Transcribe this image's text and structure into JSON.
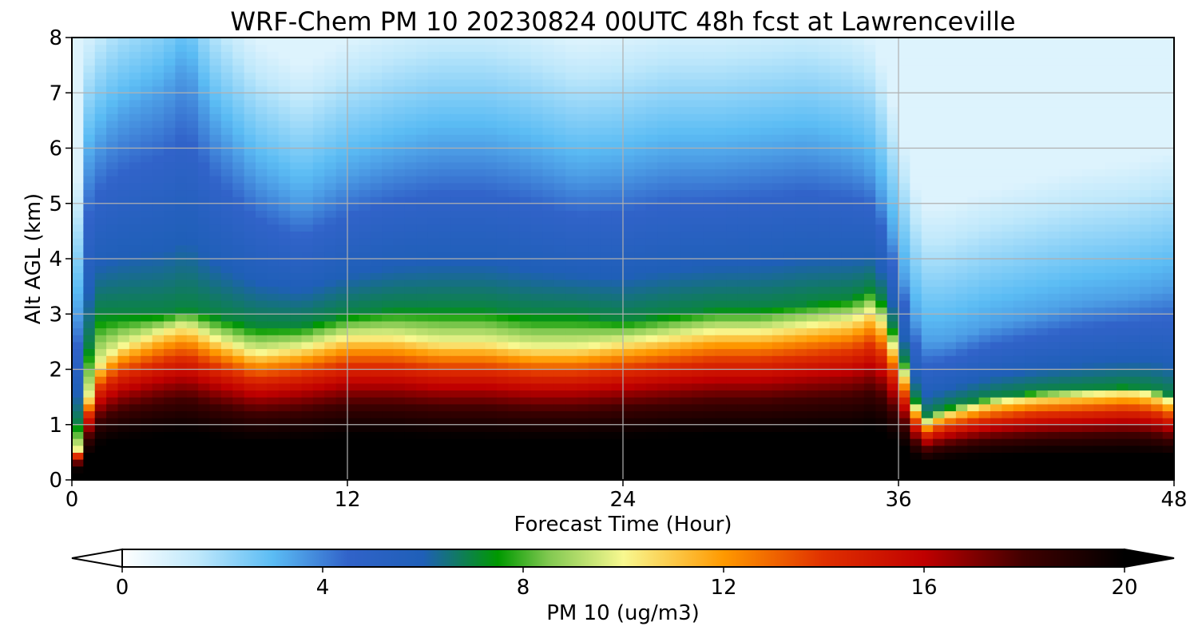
{
  "chart_data": {
    "type": "heatmap",
    "title": "WRF-Chem PM 10  20230824 00UTC 48h fcst at Lawrenceville",
    "xlabel": "Forecast Time (Hour)",
    "ylabel": "Alt AGL (km)",
    "xlim": [
      0,
      48
    ],
    "ylim": [
      0,
      8
    ],
    "xticks": [
      0,
      12,
      24,
      36,
      48
    ],
    "yticks": [
      0,
      1,
      2,
      3,
      4,
      5,
      6,
      7,
      8
    ],
    "grid": true,
    "colorbar": {
      "label": "PM 10  (ug/m3)",
      "range": [
        0,
        20
      ],
      "ticks": [
        0,
        4,
        8,
        12,
        16,
        20
      ],
      "extend": "both",
      "stops": [
        {
          "value": 0,
          "color": "#ffffff"
        },
        {
          "value": 1.5,
          "color": "#bfe8fb"
        },
        {
          "value": 3,
          "color": "#5bbcf4"
        },
        {
          "value": 4.5,
          "color": "#3163c9"
        },
        {
          "value": 6,
          "color": "#1f5fb8"
        },
        {
          "value": 7.5,
          "color": "#009900"
        },
        {
          "value": 8.5,
          "color": "#80c850"
        },
        {
          "value": 10,
          "color": "#f8f890"
        },
        {
          "value": 12,
          "color": "#ff9900"
        },
        {
          "value": 14,
          "color": "#e03000"
        },
        {
          "value": 16,
          "color": "#c00000"
        },
        {
          "value": 18,
          "color": "#400000"
        },
        {
          "value": 20,
          "color": "#000000"
        }
      ]
    },
    "profile": {
      "hours": [
        0,
        0.5,
        1,
        2,
        4,
        5,
        6,
        8,
        10,
        12,
        14,
        16,
        18,
        20,
        22,
        24,
        26,
        28,
        30,
        32,
        34,
        35,
        36,
        37,
        38,
        40,
        42,
        44,
        46,
        47,
        48
      ],
      "polluted_top_km": [
        0.1,
        1.0,
        2.0,
        2.4,
        2.7,
        2.8,
        2.6,
        2.3,
        2.4,
        2.6,
        2.6,
        2.5,
        2.5,
        2.4,
        2.4,
        2.5,
        2.6,
        2.7,
        2.7,
        2.8,
        2.9,
        3.1,
        2.2,
        1.0,
        1.2,
        1.4,
        1.5,
        1.55,
        1.6,
        1.55,
        1.4
      ],
      "green_top_km": [
        0.2,
        1.8,
        3.0,
        3.0,
        3.0,
        3.1,
        3.0,
        2.8,
        2.8,
        3.0,
        3.1,
        3.1,
        3.1,
        3.0,
        3.0,
        2.9,
        3.0,
        3.1,
        3.1,
        3.2,
        3.3,
        3.5,
        2.5,
        1.1,
        1.3,
        1.5,
        1.6,
        1.65,
        1.7,
        1.65,
        1.5
      ],
      "blue_top_km": [
        0.5,
        5.5,
        6.0,
        6.5,
        7.0,
        7.5,
        6.5,
        5.5,
        5.0,
        5.5,
        5.8,
        6.0,
        6.0,
        5.8,
        5.5,
        5.6,
        5.8,
        5.8,
        5.9,
        6.0,
        5.8,
        5.5,
        4.0,
        2.5,
        2.5,
        2.8,
        3.0,
        3.2,
        3.3,
        3.4,
        3.5
      ]
    }
  }
}
